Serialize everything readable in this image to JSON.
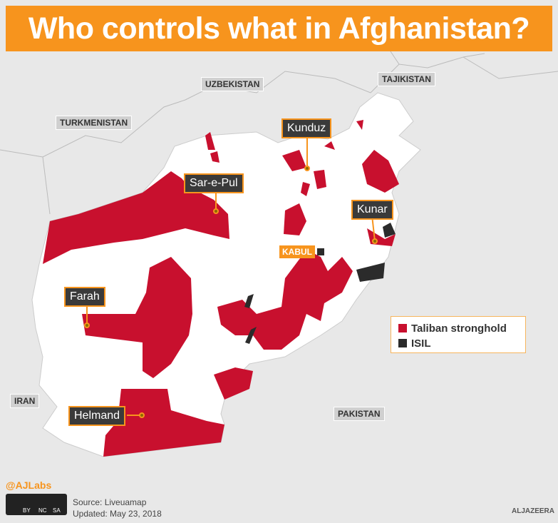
{
  "header": {
    "title": "Who controls what in Afghanistan?"
  },
  "countries": [
    "UZBEKISTAN",
    "TAJIKISTAN",
    "TURKMENISTAN",
    "IRAN",
    "PAKISTAN"
  ],
  "places": [
    "Kunduz",
    "Sar-e-Pul",
    "Kunar",
    "KABUL",
    "Farah",
    "Helmand"
  ],
  "legend": [
    "Taliban stronghold",
    "ISIL"
  ],
  "footer": {
    "handle": "@AJLabs",
    "license": [
      "BY",
      "NC",
      "SA"
    ],
    "source": "Source: Liveuamap",
    "updated": "Updated: May 23, 2018",
    "brand": "ALJAZEERA"
  }
}
